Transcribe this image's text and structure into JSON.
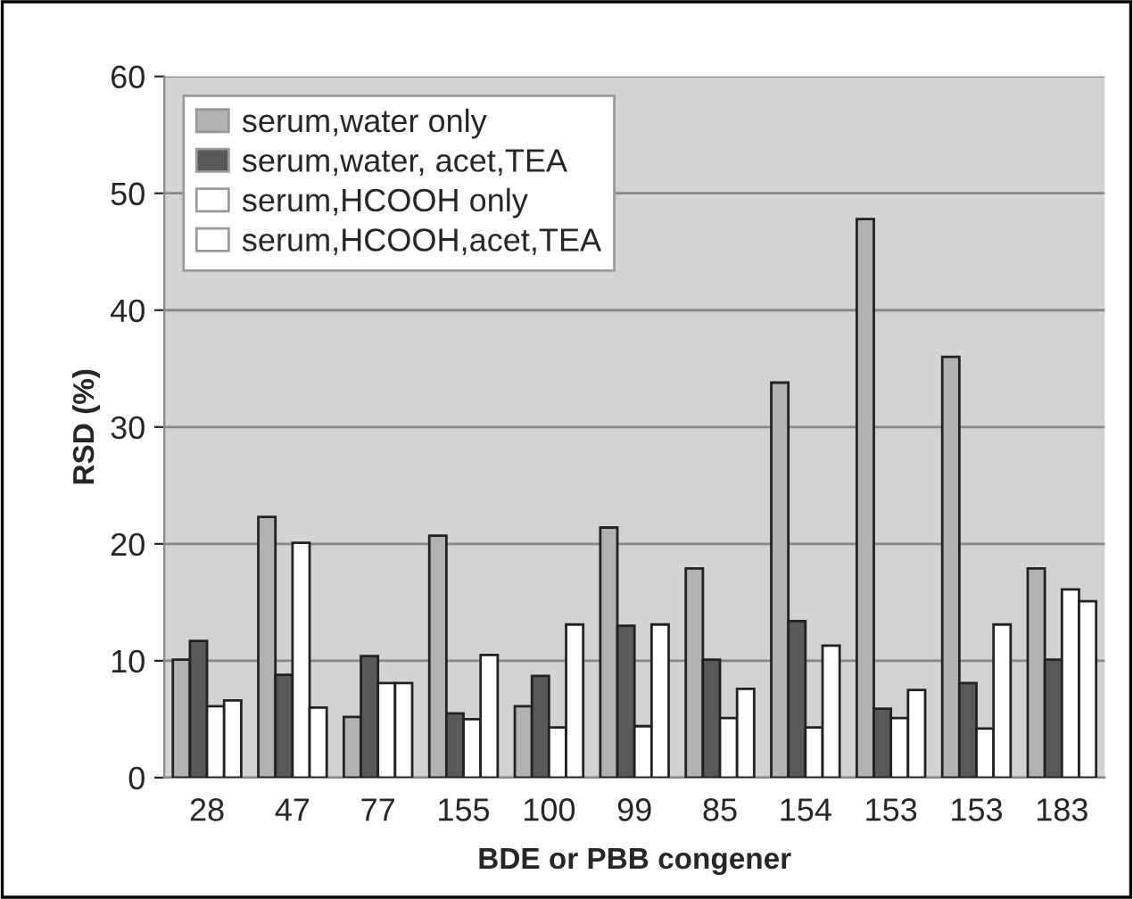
{
  "chart_data": {
    "type": "bar",
    "xlabel": "BDE or PBB congener",
    "ylabel": "RSD (%)",
    "categories": [
      "28",
      "47",
      "77",
      "155",
      "100",
      "99",
      "85",
      "154",
      "153",
      "153",
      "183"
    ],
    "series": [
      {
        "name": "serum,water only",
        "color": "#b2b2b2",
        "values": [
          10.1,
          22.3,
          5.2,
          20.7,
          6.1,
          21.4,
          17.9,
          33.8,
          47.8,
          36.0,
          17.9
        ]
      },
      {
        "name": "serum,water, acet,TEA",
        "color": "#595959",
        "values": [
          11.7,
          8.8,
          10.4,
          5.5,
          8.7,
          13.0,
          10.1,
          13.4,
          5.9,
          8.1,
          10.1
        ]
      },
      {
        "name": "serum,HCOOH only",
        "color": "#ffffff",
        "values": [
          6.1,
          20.1,
          8.1,
          5.0,
          4.3,
          4.4,
          5.1,
          4.3,
          5.1,
          4.2,
          16.1
        ]
      },
      {
        "name": "serum,HCOOH,acet,TEA",
        "color": "#ffffff",
        "values": [
          6.6,
          6.0,
          8.1,
          10.5,
          13.1,
          13.1,
          7.6,
          11.3,
          7.5,
          13.1,
          15.1
        ]
      }
    ],
    "ylim": [
      0,
      60
    ],
    "yticks": [
      0,
      10,
      20,
      30,
      40,
      50,
      60
    ],
    "grid": "y",
    "legend": "top left"
  }
}
